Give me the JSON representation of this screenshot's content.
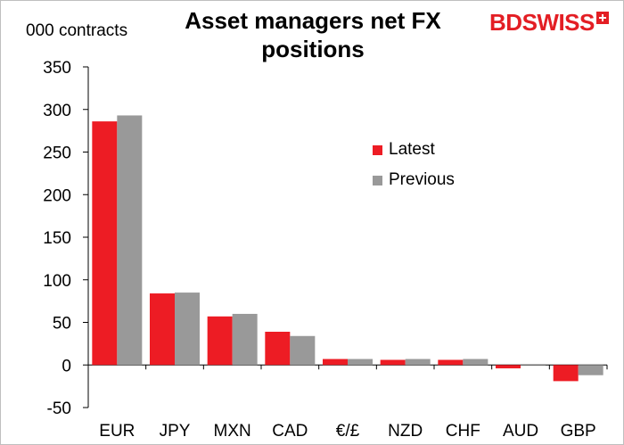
{
  "chart_data": {
    "type": "bar",
    "title": "Asset managers net FX positions",
    "ylabel": "000 contracts",
    "categories": [
      "EUR",
      "JPY",
      "MXN",
      "CAD",
      "€/£",
      "NZD",
      "CHF",
      "AUD",
      "GBP"
    ],
    "series": [
      {
        "name": "Latest",
        "color": "#ed1c24",
        "values": [
          286,
          84,
          57,
          39,
          7,
          6,
          6,
          -4,
          -19
        ]
      },
      {
        "name": "Previous",
        "color": "#999999",
        "values": [
          293,
          85,
          60,
          34,
          7,
          7,
          7,
          1,
          -12
        ]
      }
    ],
    "ylim": [
      -50,
      350
    ],
    "yticks": [
      -50,
      0,
      50,
      100,
      150,
      200,
      250,
      300,
      350
    ],
    "grid": false,
    "legend_position": "right-inside"
  },
  "branding": {
    "logo_bd": "BD",
    "logo_swiss": "SWISS"
  }
}
